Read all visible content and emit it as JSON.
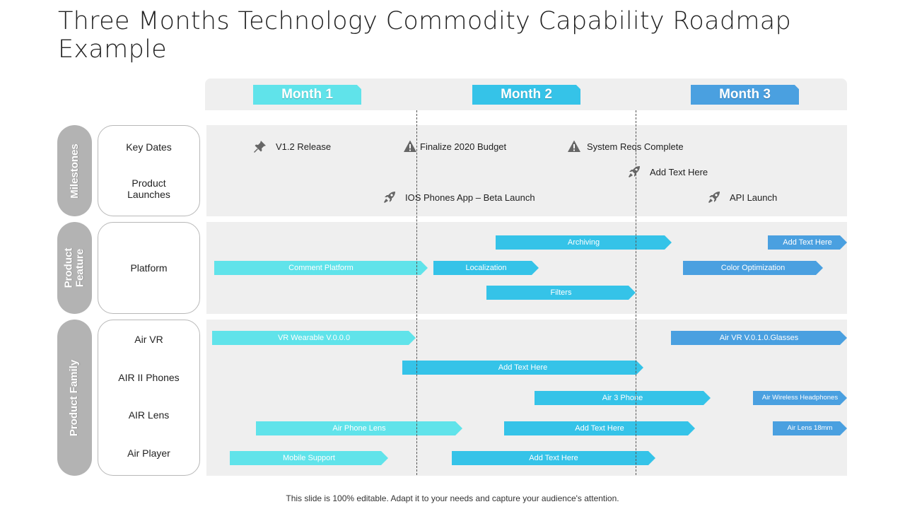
{
  "title": "Three Months Technology Commodity Capability Roadmap Example",
  "colors": {
    "month1": "#60e3ea",
    "month2": "#35c3e8",
    "month3": "#4aa0e0",
    "band": "#efefef",
    "pill": "#b3b3b3"
  },
  "months": [
    {
      "label": "Month 1"
    },
    {
      "label": "Month 2"
    },
    {
      "label": "Month 3"
    }
  ],
  "groups": [
    {
      "label": "Milestones"
    },
    {
      "label": "Product\nFeature"
    },
    {
      "label": "Product Family"
    }
  ],
  "rows": [
    {
      "label": "Key Dates"
    },
    {
      "label": "Product\nLaunches"
    },
    {
      "label": "Platform"
    },
    {
      "label": "Air VR"
    },
    {
      "label": "AIR II Phones"
    },
    {
      "label": "AIR Lens"
    },
    {
      "label": "Air Player"
    }
  ],
  "milestones": [
    {
      "label": "V1.2 Release",
      "icon": "pin-icon"
    },
    {
      "label": "Finalize 2020 Budget",
      "icon": "warning-icon"
    },
    {
      "label": "System Reqs Complete",
      "icon": "warning-icon"
    },
    {
      "label": "Add Text Here",
      "icon": "rocket-icon"
    },
    {
      "label": "IOS Phones App – Beta Launch",
      "icon": "rocket-icon"
    },
    {
      "label": "API Launch",
      "icon": "rocket-icon"
    }
  ],
  "bars": [
    {
      "label": "Archiving"
    },
    {
      "label": "Add Text Here"
    },
    {
      "label": "Comment Platform"
    },
    {
      "label": "Localization"
    },
    {
      "label": "Color Optimization"
    },
    {
      "label": "Filters"
    },
    {
      "label": "VR Wearable V.0.0.0"
    },
    {
      "label": "Air VR V.0.1.0.Glasses"
    },
    {
      "label": "Add Text Here"
    },
    {
      "label": "Air 3 Phone"
    },
    {
      "label": "Air Wireless Headphones"
    },
    {
      "label": "Air Phone Lens"
    },
    {
      "label": "Add Text Here"
    },
    {
      "label": "Air Lens 18mm"
    },
    {
      "label": "Mobile Support"
    },
    {
      "label": "Add Text Here"
    }
  ],
  "footer": "This slide is 100% editable. Adapt it to your needs and capture your audience's attention."
}
